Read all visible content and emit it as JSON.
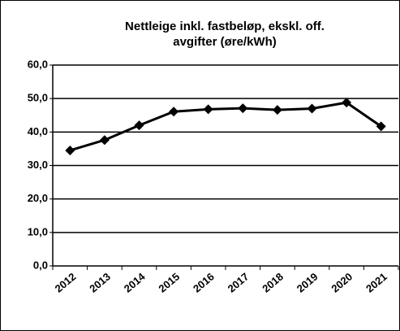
{
  "chart_data": {
    "type": "line",
    "title": [
      "Nettleige inkl. fastbeløp, ekskl. off.",
      "avgifter (øre/kWh)"
    ],
    "categories": [
      "2012",
      "2013",
      "2014",
      "2015",
      "2016",
      "2017",
      "2018",
      "2019",
      "2020",
      "2021"
    ],
    "series": [
      {
        "name": "Nettleige",
        "color": "#000000",
        "values": [
          34.5,
          37.6,
          42.0,
          46.1,
          46.8,
          47.1,
          46.6,
          47.0,
          48.8,
          41.7
        ]
      }
    ],
    "ylim": [
      0,
      60
    ],
    "yticks": [
      {
        "value": 0,
        "label": "0,0"
      },
      {
        "value": 10,
        "label": "10,0"
      },
      {
        "value": 20,
        "label": "20,0"
      },
      {
        "value": 30,
        "label": "30,0"
      },
      {
        "value": 40,
        "label": "40,0"
      },
      {
        "value": 50,
        "label": "50,0"
      },
      {
        "value": 60,
        "label": "60,0"
      }
    ],
    "grid": true
  }
}
